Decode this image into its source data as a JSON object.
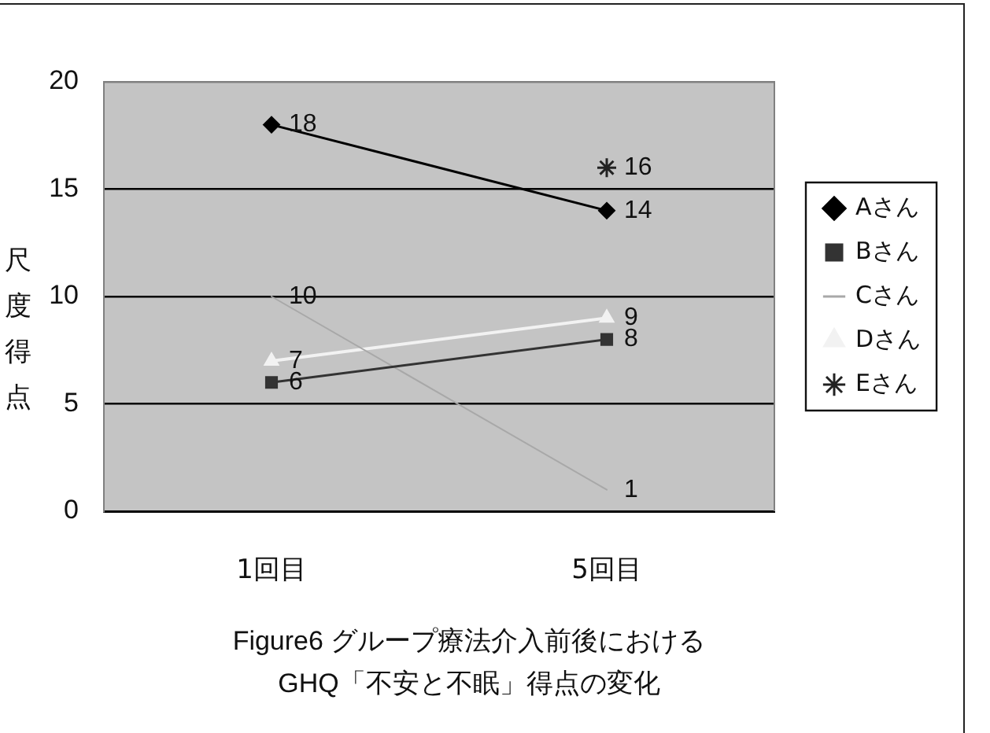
{
  "chart_data": {
    "type": "line",
    "title": "Figure6 グループ療法介入前後における\nGHQ「不安と不眠」得点の変化",
    "ylabel": "尺度得点",
    "categories": [
      "1回目",
      "5回目"
    ],
    "series": [
      {
        "name": "Aさん",
        "color": "#000000",
        "marker": "diamond",
        "values": [
          18,
          14
        ]
      },
      {
        "name": "Bさん",
        "color": "#333333",
        "marker": "square",
        "values": [
          6,
          8
        ]
      },
      {
        "name": "Cさん",
        "color": "#a8a8a8",
        "marker": "none",
        "values": [
          10,
          1
        ]
      },
      {
        "name": "Dさん",
        "color": "#f2f2f2",
        "marker": "triangle",
        "values": [
          7,
          9
        ]
      },
      {
        "name": "Eさん",
        "color": "#222222",
        "marker": "cross",
        "values": [
          null,
          16
        ]
      }
    ],
    "ylim": [
      0,
      20
    ],
    "yticks": [
      0,
      5,
      10,
      15,
      20
    ],
    "grid": "y",
    "legend": "right",
    "data_labels": true
  }
}
